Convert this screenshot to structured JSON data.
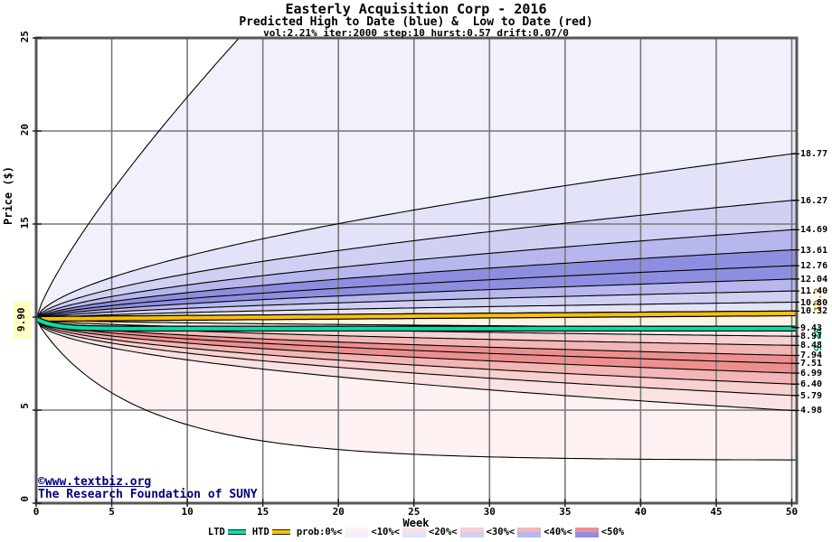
{
  "header": {
    "title": "Easterly Acquisition Corp - 2016",
    "subtitle": "Predicted High to Date (blue) &  Low to Date (red)",
    "params": "vol:2.21% iter:2000 step:10 hurst:0.57 drift:0.07/0"
  },
  "watermark": {
    "line1": "©www.textbiz.org",
    "line2": "The Research Foundation of SUNY",
    "color": "#000080"
  },
  "axes": {
    "x_label": "Week",
    "y_label": "Price ($)",
    "x_ticks": [
      0,
      5,
      10,
      15,
      20,
      25,
      30,
      35,
      40,
      45,
      50
    ],
    "y_ticks": [
      0,
      5,
      15,
      20,
      25
    ],
    "x_range": [
      0,
      50
    ],
    "y_range": [
      0,
      25
    ],
    "start_price_label": "9.90"
  },
  "legend": {
    "ltd_label": "LTD",
    "htd_label": "HTD",
    "prob_prefix": "prob:0%<",
    "prob_steps": [
      "<10%<",
      "<20%<",
      "<30%<",
      "<40%<",
      "<50%"
    ],
    "ltd_color": "#00e2a8",
    "htd_color": "#ffc000",
    "band_colors_blue": [
      "#f1f1fc",
      "#e2e2f8",
      "#d0d0f3",
      "#b7b7ee",
      "#8e8ee1"
    ],
    "band_colors_red": [
      "#fdf1f1",
      "#fbe2e2",
      "#f8d0d0",
      "#f3b5b5",
      "#ee8f8f"
    ],
    "inner_band_color": "#fcf5e3"
  },
  "right_vertical_labels": {
    "htd": {
      "text": "10.2",
      "color": "#b08000"
    },
    "ltd": {
      "text": "9.38",
      "color": "#00a070"
    }
  },
  "chart_data": {
    "type": "area",
    "title": "Easterly Acquisition Corp - 2016",
    "xlabel": "Week",
    "ylabel": "Price ($)",
    "xlim": [
      0,
      50
    ],
    "ylim": [
      0,
      25
    ],
    "grid": true,
    "start_week": 0,
    "start_price": 9.9,
    "high_contours_week50": [
      10.32,
      10.8,
      11.4,
      12.04,
      12.76,
      13.61,
      14.69,
      16.27,
      18.77
    ],
    "low_contours_week50": [
      9.43,
      8.97,
      8.48,
      7.94,
      7.51,
      6.99,
      6.4,
      5.79,
      4.98
    ],
    "htd_line": {
      "start": 9.9,
      "end_week50": 10.2
    },
    "ltd_line": {
      "start": 9.9,
      "end_week50": 9.38
    },
    "low_outer_boundary_week50": 2.3,
    "probability_band_edges_pct": [
      0,
      10,
      20,
      30,
      40,
      50
    ]
  }
}
